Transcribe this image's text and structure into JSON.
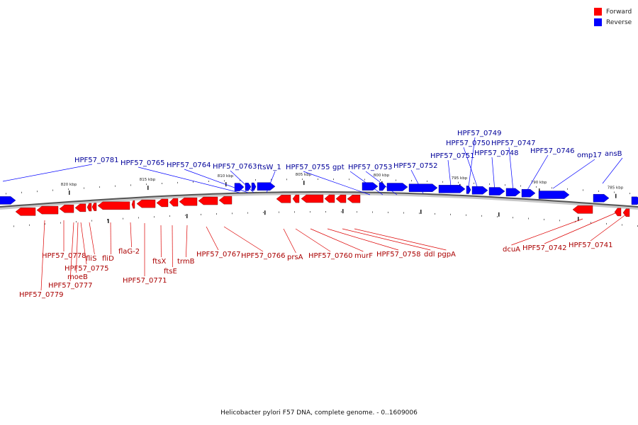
{
  "legend": {
    "forward": {
      "label": "Forward",
      "color": "#ff0000"
    },
    "reverse": {
      "label": "Reverse",
      "color": "#0000ff"
    }
  },
  "caption": "Helicobacter pylori F57 DNA, complete genome. - 0..1609006",
  "scale": {
    "unit": "kbp",
    "ticks": [
      {
        "label": "820 kbp",
        "kbp": 820
      },
      {
        "label": "815 kbp",
        "kbp": 815
      },
      {
        "label": "810 kbp",
        "kbp": 810
      },
      {
        "label": "805 kbp",
        "kbp": 805
      },
      {
        "label": "800 kbp",
        "kbp": 800
      },
      {
        "label": "795 kbp",
        "kbp": 795
      },
      {
        "label": "790 kbp",
        "kbp": 790
      },
      {
        "label": "785 kbp",
        "kbp": 785
      }
    ]
  },
  "reverse_genes": [
    {
      "name": "HPF57_0781"
    },
    {
      "name": "HPF57_0765"
    },
    {
      "name": "HPF57_0764"
    },
    {
      "name": "HPF57_0763"
    },
    {
      "name": "ftsW_1"
    },
    {
      "name": "HPF57_0755"
    },
    {
      "name": "gpt"
    },
    {
      "name": "HPF57_0753"
    },
    {
      "name": "HPF57_0752"
    },
    {
      "name": "HPF57_0751"
    },
    {
      "name": "HPF57_0749"
    },
    {
      "name": "HPF57_0750"
    },
    {
      "name": "HPF57_0748"
    },
    {
      "name": "HPF57_0747"
    },
    {
      "name": "HPF57_0746"
    },
    {
      "name": "omp17"
    },
    {
      "name": "ansB"
    }
  ],
  "forward_genes": [
    {
      "name": "HPF57_0778"
    },
    {
      "name": "fliS"
    },
    {
      "name": "fliD"
    },
    {
      "name": "flaG-2"
    },
    {
      "name": "HPF57_0775"
    },
    {
      "name": "moeB"
    },
    {
      "name": "HPF57_0777"
    },
    {
      "name": "HPF57_0779"
    },
    {
      "name": "HPF57_0771"
    },
    {
      "name": "ftsX"
    },
    {
      "name": "ftsE"
    },
    {
      "name": "trmB"
    },
    {
      "name": "HPF57_0767"
    },
    {
      "name": "HPF57_0766"
    },
    {
      "name": "prsA"
    },
    {
      "name": "HPF57_0760"
    },
    {
      "name": "murF"
    },
    {
      "name": "HPF57_0758"
    },
    {
      "name": "ddl"
    },
    {
      "name": "pgpA"
    },
    {
      "name": "dcuA"
    },
    {
      "name": "HPF57_0742"
    },
    {
      "name": "HPF57_0741"
    }
  ]
}
